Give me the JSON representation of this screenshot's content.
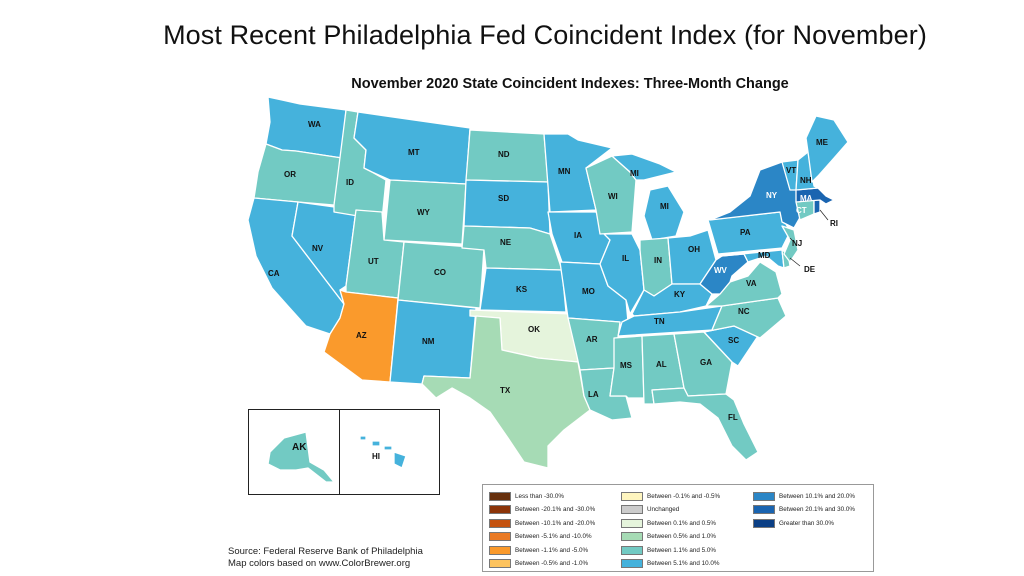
{
  "slide": {
    "title": "Most Recent Philadelphia Fed Coincident Index (for November)"
  },
  "map": {
    "title": "November 2020 State Coincident Indexes: Three-Month Change",
    "source_line1": "Source: Federal Reserve Bank of Philadelphia",
    "source_line2": "Map colors based on www.ColorBrewer.org",
    "colors": {
      "lt_m30": "#67300d",
      "m20_m30": "#8b3409",
      "m10_m20": "#c4520f",
      "m5_m10": "#ea7a25",
      "m1_m5": "#fa9a2c",
      "m05_m1": "#fdc35e",
      "m01_m05": "#fef5bf",
      "unchanged": "#cccccc",
      "p01_p05": "#e5f4dc",
      "p05_p1": "#a6dbb5",
      "p11_p5": "#72cac3",
      "p51_p10": "#45b2dc",
      "p101_p20": "#2b86c6",
      "p201_p30": "#1a64b0",
      "gt_p30": "#0b3f85"
    },
    "legend": [
      {
        "key": "lt_m30",
        "label": "Less than -30.0%"
      },
      {
        "key": "m20_m30",
        "label": "Between -20.1% and -30.0%"
      },
      {
        "key": "m10_m20",
        "label": "Between -10.1% and -20.0%"
      },
      {
        "key": "m5_m10",
        "label": "Between -5.1% and -10.0%"
      },
      {
        "key": "m1_m5",
        "label": "Between -1.1% and -5.0%"
      },
      {
        "key": "m05_m1",
        "label": "Between -0.5% and -1.0%"
      },
      {
        "key": "m01_m05",
        "label": "Between -0.1% and -0.5%"
      },
      {
        "key": "unchanged",
        "label": "Unchanged"
      },
      {
        "key": "p01_p05",
        "label": "Between 0.1% and 0.5%"
      },
      {
        "key": "p05_p1",
        "label": "Between 0.5% and 1.0%"
      },
      {
        "key": "p11_p5",
        "label": "Between 1.1% and 5.0%"
      },
      {
        "key": "p51_p10",
        "label": "Between 5.1% and 10.0%"
      },
      {
        "key": "p101_p20",
        "label": "Between 10.1% and 20.0%"
      },
      {
        "key": "p201_p30",
        "label": "Between 20.1% and 30.0%"
      },
      {
        "key": "gt_p30",
        "label": "Greater than 30.0%"
      }
    ],
    "states": {
      "WA": {
        "label": "WA",
        "cat": "p51_p10"
      },
      "OR": {
        "label": "OR",
        "cat": "p11_p5"
      },
      "CA": {
        "label": "CA",
        "cat": "p51_p10"
      },
      "NV": {
        "label": "NV",
        "cat": "p51_p10"
      },
      "ID": {
        "label": "ID",
        "cat": "p11_p5"
      },
      "MT": {
        "label": "MT",
        "cat": "p51_p10"
      },
      "WY": {
        "label": "WY",
        "cat": "p11_p5"
      },
      "UT": {
        "label": "UT",
        "cat": "p11_p5"
      },
      "AZ": {
        "label": "AZ",
        "cat": "m1_m5"
      },
      "CO": {
        "label": "CO",
        "cat": "p11_p5"
      },
      "NM": {
        "label": "NM",
        "cat": "p51_p10"
      },
      "ND": {
        "label": "ND",
        "cat": "p11_p5"
      },
      "SD": {
        "label": "SD",
        "cat": "p51_p10"
      },
      "NE": {
        "label": "NE",
        "cat": "p11_p5"
      },
      "KS": {
        "label": "KS",
        "cat": "p51_p10"
      },
      "OK": {
        "label": "OK",
        "cat": "p01_p05"
      },
      "TX": {
        "label": "TX",
        "cat": "p05_p1"
      },
      "MN": {
        "label": "MN",
        "cat": "p51_p10"
      },
      "IA": {
        "label": "IA",
        "cat": "p51_p10"
      },
      "MO": {
        "label": "MO",
        "cat": "p51_p10"
      },
      "AR": {
        "label": "AR",
        "cat": "p11_p5"
      },
      "LA": {
        "label": "LA",
        "cat": "p11_p5"
      },
      "WI": {
        "label": "WI",
        "cat": "p11_p5"
      },
      "IL": {
        "label": "IL",
        "cat": "p51_p10"
      },
      "MI": {
        "label": "MI",
        "cat": "p51_p10"
      },
      "IN": {
        "label": "IN",
        "cat": "p11_p5"
      },
      "OH": {
        "label": "OH",
        "cat": "p51_p10"
      },
      "KY": {
        "label": "KY",
        "cat": "p51_p10"
      },
      "TN": {
        "label": "TN",
        "cat": "p51_p10"
      },
      "MS": {
        "label": "MS",
        "cat": "p11_p5"
      },
      "AL": {
        "label": "AL",
        "cat": "p11_p5"
      },
      "GA": {
        "label": "GA",
        "cat": "p11_p5"
      },
      "FL": {
        "label": "FL",
        "cat": "p11_p5"
      },
      "SC": {
        "label": "SC",
        "cat": "p51_p10"
      },
      "NC": {
        "label": "NC",
        "cat": "p11_p5"
      },
      "VA": {
        "label": "VA",
        "cat": "p11_p5"
      },
      "WV": {
        "label": "WV",
        "cat": "p101_p20"
      },
      "MD": {
        "label": "MD",
        "cat": "p51_p10"
      },
      "DE": {
        "label": "DE",
        "cat": "p11_p5"
      },
      "PA": {
        "label": "PA",
        "cat": "p51_p10"
      },
      "NJ": {
        "label": "NJ",
        "cat": "p11_p5"
      },
      "NY": {
        "label": "NY",
        "cat": "p101_p20"
      },
      "CT": {
        "label": "CT",
        "cat": "p11_p5"
      },
      "RI": {
        "label": "RI",
        "cat": "p201_p30"
      },
      "MA": {
        "label": "MA",
        "cat": "p201_p30"
      },
      "VT": {
        "label": "VT",
        "cat": "p51_p10"
      },
      "NH": {
        "label": "NH",
        "cat": "p51_p10"
      },
      "ME": {
        "label": "ME",
        "cat": "p51_p10"
      },
      "AK": {
        "label": "AK",
        "cat": "p11_p5"
      },
      "HI": {
        "label": "HI",
        "cat": "p51_p10"
      }
    }
  }
}
